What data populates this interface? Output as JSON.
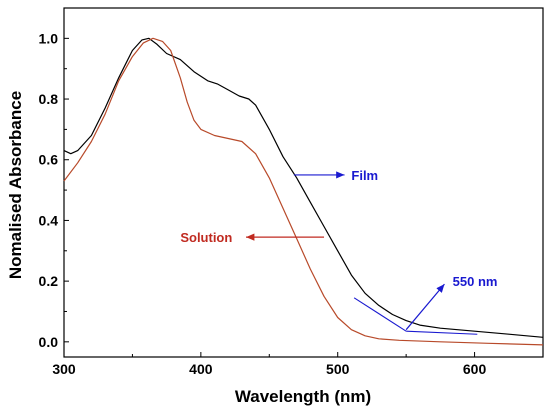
{
  "chart_data": {
    "type": "line",
    "xlabel": "Wavelength (nm)",
    "ylabel": "Nomalised Absorbance",
    "xlim": [
      300,
      650
    ],
    "ylim": [
      -0.05,
      1.1
    ],
    "x_ticks": [
      300,
      400,
      500,
      600
    ],
    "y_ticks": [
      0.0,
      0.2,
      0.4,
      0.6,
      0.8,
      1.0
    ],
    "x_tick_labels": [
      "300",
      "400",
      "500",
      "600"
    ],
    "y_tick_labels": [
      "0.0",
      "0.2",
      "0.4",
      "0.6",
      "0.8",
      "1.0"
    ],
    "grid": false,
    "series": [
      {
        "name": "Film",
        "color": "#000000",
        "points": [
          [
            300,
            0.63
          ],
          [
            305,
            0.62
          ],
          [
            310,
            0.63
          ],
          [
            320,
            0.68
          ],
          [
            330,
            0.77
          ],
          [
            340,
            0.87
          ],
          [
            350,
            0.96
          ],
          [
            357,
            0.995
          ],
          [
            362,
            1.0
          ],
          [
            368,
            0.98
          ],
          [
            375,
            0.95
          ],
          [
            385,
            0.93
          ],
          [
            395,
            0.89
          ],
          [
            405,
            0.86
          ],
          [
            412,
            0.85
          ],
          [
            420,
            0.83
          ],
          [
            428,
            0.81
          ],
          [
            435,
            0.8
          ],
          [
            440,
            0.78
          ],
          [
            450,
            0.7
          ],
          [
            460,
            0.61
          ],
          [
            470,
            0.54
          ],
          [
            480,
            0.46
          ],
          [
            490,
            0.38
          ],
          [
            500,
            0.3
          ],
          [
            510,
            0.22
          ],
          [
            520,
            0.16
          ],
          [
            530,
            0.12
          ],
          [
            540,
            0.09
          ],
          [
            550,
            0.07
          ],
          [
            560,
            0.055
          ],
          [
            575,
            0.045
          ],
          [
            600,
            0.035
          ],
          [
            625,
            0.025
          ],
          [
            650,
            0.015
          ]
        ]
      },
      {
        "name": "Solution",
        "color": "#b84a2a",
        "points": [
          [
            300,
            0.53
          ],
          [
            310,
            0.59
          ],
          [
            320,
            0.66
          ],
          [
            330,
            0.75
          ],
          [
            340,
            0.86
          ],
          [
            350,
            0.94
          ],
          [
            358,
            0.985
          ],
          [
            365,
            1.0
          ],
          [
            372,
            0.99
          ],
          [
            378,
            0.96
          ],
          [
            385,
            0.87
          ],
          [
            390,
            0.79
          ],
          [
            395,
            0.73
          ],
          [
            400,
            0.7
          ],
          [
            410,
            0.68
          ],
          [
            420,
            0.67
          ],
          [
            430,
            0.66
          ],
          [
            440,
            0.62
          ],
          [
            450,
            0.54
          ],
          [
            460,
            0.44
          ],
          [
            470,
            0.34
          ],
          [
            480,
            0.24
          ],
          [
            490,
            0.15
          ],
          [
            500,
            0.08
          ],
          [
            510,
            0.04
          ],
          [
            520,
            0.02
          ],
          [
            530,
            0.01
          ],
          [
            545,
            0.005
          ],
          [
            575,
            0.0
          ],
          [
            610,
            -0.005
          ],
          [
            650,
            -0.01
          ]
        ]
      }
    ],
    "annotations": [
      {
        "label": "Film",
        "color": "#1a1ad0",
        "arrow_from": [
          468,
          0.55
        ],
        "arrow_to": [
          505,
          0.55
        ],
        "text_at": [
          510,
          0.55
        ]
      },
      {
        "label": "Solution",
        "color": "#c02a20",
        "arrow_from": [
          490,
          0.345
        ],
        "arrow_to": [
          433,
          0.345
        ],
        "text_at": [
          385,
          0.345
        ]
      },
      {
        "label": "550 nm",
        "color": "#1a1ad0",
        "arrow_from": [
          550,
          0.04
        ],
        "arrow_to": [
          578,
          0.19
        ],
        "text_at": [
          584,
          0.2
        ]
      }
    ],
    "annotation_lines": [
      {
        "color": "#1a1ad0",
        "from": [
          512,
          0.145
        ],
        "to": [
          550,
          0.035
        ]
      },
      {
        "color": "#1a1ad0",
        "from": [
          550,
          0.035
        ],
        "to": [
          602,
          0.025
        ]
      }
    ]
  }
}
